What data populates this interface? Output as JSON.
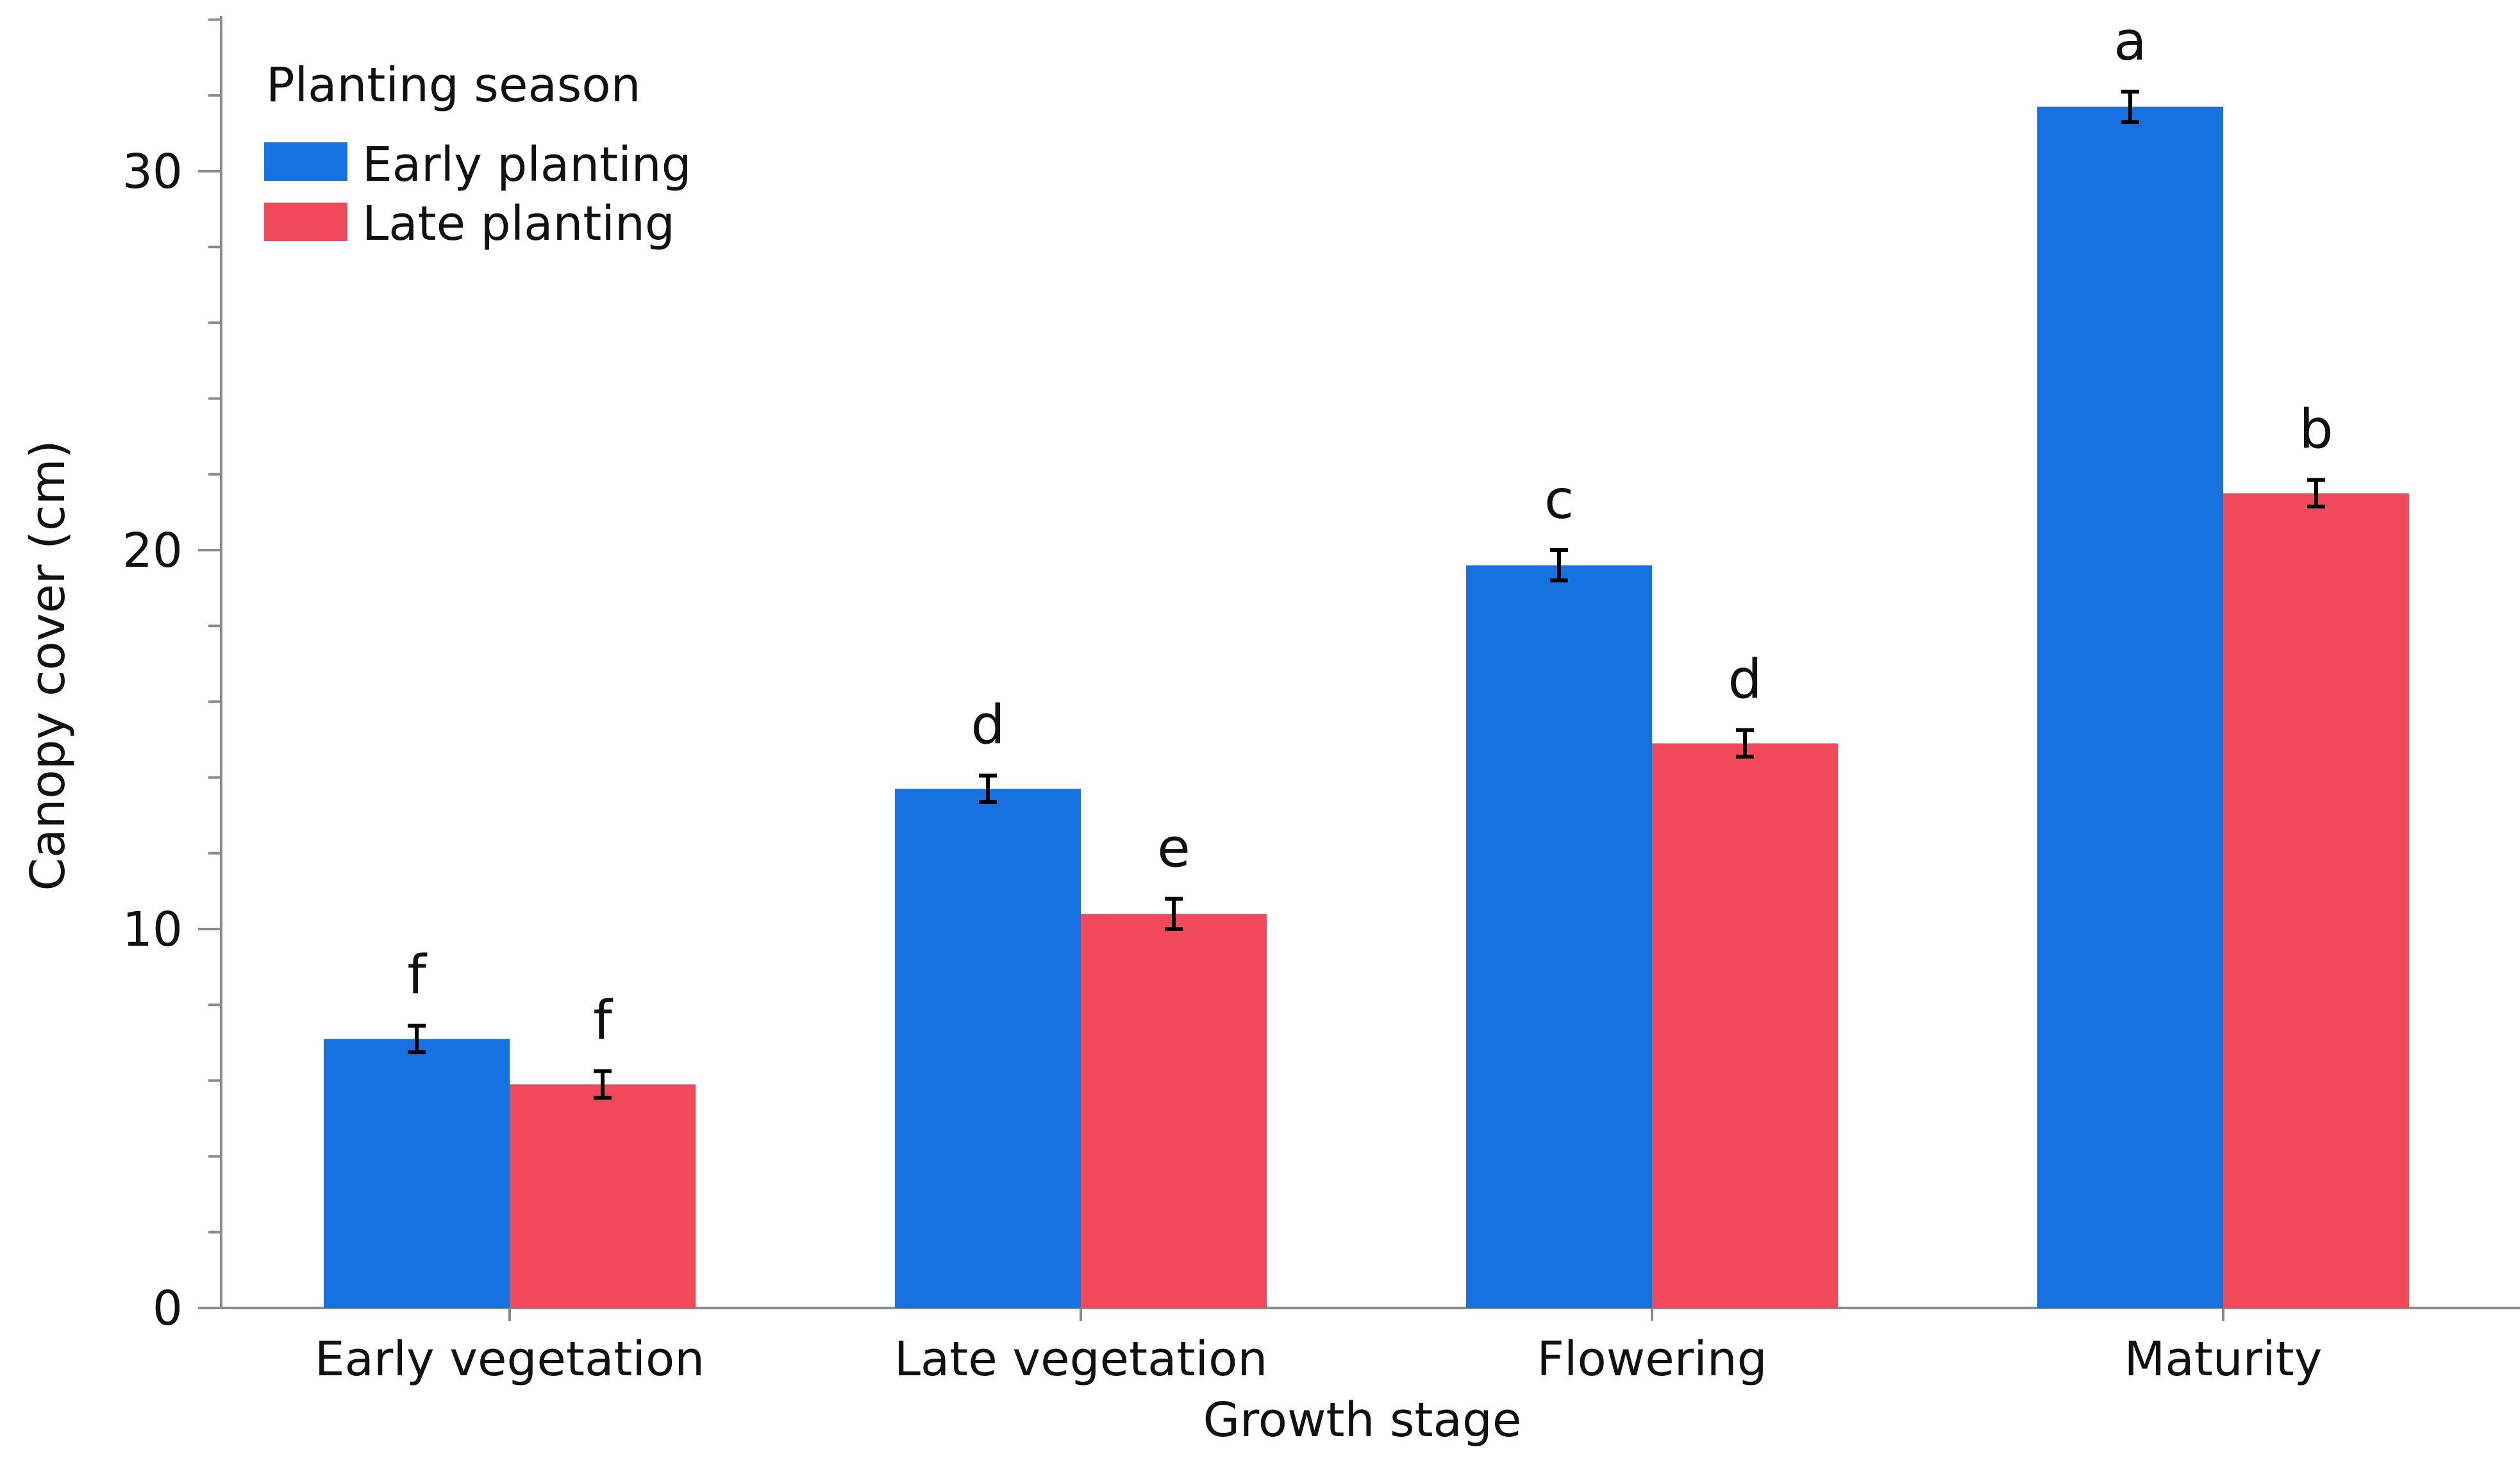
{
  "chart_data": {
    "type": "bar",
    "title": "",
    "xlabel": "Growth stage",
    "ylabel": "Canopy cover (cm)",
    "categories": [
      "Early vegetation",
      "Late vegetation",
      "Flowering",
      "Maturity"
    ],
    "series": [
      {
        "name": "Early planting",
        "color": "#1672E0",
        "values": [
          7.1,
          13.7,
          19.6,
          31.7
        ],
        "errors": [
          0.35,
          0.35,
          0.4,
          0.4
        ],
        "letters": [
          "f",
          "d",
          "c",
          "a"
        ]
      },
      {
        "name": "Late planting",
        "color": "#F04A5A",
        "values": [
          5.9,
          10.4,
          14.9,
          21.5
        ],
        "errors": [
          0.35,
          0.4,
          0.35,
          0.35
        ],
        "letters": [
          "f",
          "e",
          "d",
          "b"
        ]
      }
    ],
    "legend_title": "Planting season",
    "legend_position": "top-left",
    "ylim": [
      0,
      34
    ],
    "yticks": [
      0,
      10,
      20,
      30
    ],
    "grid": false
  }
}
